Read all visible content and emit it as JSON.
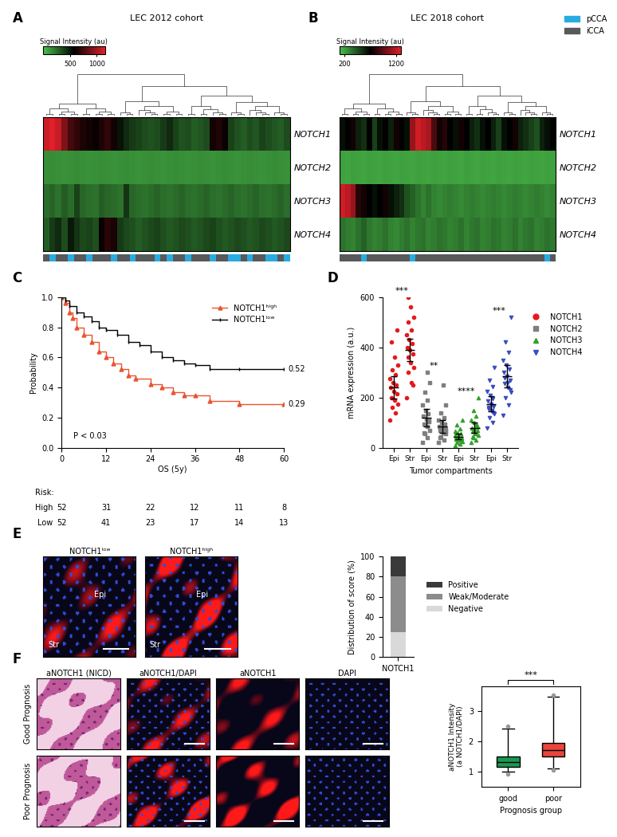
{
  "chart_data": [
    {
      "panel": "A",
      "type": "heatmap",
      "title": "LEC 2012 cohort",
      "rows": [
        "NOTCH1",
        "NOTCH2",
        "NOTCH3",
        "NOTCH4"
      ],
      "cells": [
        [
          1100,
          1150,
          1080,
          900,
          750,
          700,
          650,
          620,
          600,
          650,
          700,
          620,
          520,
          450,
          400,
          380,
          350,
          330,
          350,
          400,
          450,
          380,
          330,
          350,
          300,
          320,
          350,
          620,
          660,
          600,
          380,
          330,
          300,
          350,
          320,
          380,
          350,
          320,
          300,
          350
        ],
        [
          150,
          160,
          150,
          140,
          150,
          160,
          150,
          140,
          150,
          160,
          150,
          140,
          150,
          160,
          150,
          140,
          150,
          160,
          150,
          140,
          150,
          160,
          150,
          140,
          150,
          160,
          150,
          140,
          150,
          160,
          150,
          140,
          150,
          160,
          150,
          140,
          150,
          160,
          150,
          140
        ],
        [
          250,
          280,
          240,
          300,
          260,
          380,
          270,
          250,
          240,
          300,
          270,
          260,
          240,
          420,
          270,
          250,
          240,
          260,
          280,
          250,
          240,
          260,
          280,
          250,
          240,
          260,
          280,
          250,
          240,
          260,
          280,
          250,
          240,
          260,
          280,
          250,
          240,
          260,
          280,
          250
        ],
        [
          300,
          400,
          450,
          350,
          500,
          420,
          360,
          380,
          340,
          600,
          680,
          640,
          400,
          360,
          340,
          300,
          330,
          360,
          380,
          340,
          310,
          330,
          360,
          340,
          310,
          330,
          360,
          380,
          340,
          310,
          330,
          360,
          340,
          310,
          330,
          360,
          340,
          310,
          330,
          360
        ]
      ],
      "colorbar": {
        "label": "Signal Intensity (au)",
        "range": [
          0,
          1150
        ],
        "ticks": [
          500,
          1000
        ]
      },
      "annotation": {
        "series": [
          {
            "name": "pCCA",
            "color": "#29abe2"
          },
          {
            "name": "iCCA",
            "color": "#58595b"
          }
        ],
        "values": [
          "iCCA",
          "pCCA",
          "iCCA",
          "iCCA",
          "pCCA",
          "iCCA",
          "iCCA",
          "pCCA",
          "iCCA",
          "iCCA",
          "iCCA",
          "pCCA",
          "iCCA",
          "iCCA",
          "pCCA",
          "iCCA",
          "iCCA",
          "iCCA",
          "pCCA",
          "iCCA",
          "pCCA",
          "iCCA",
          "iCCA",
          "pCCA",
          "iCCA",
          "iCCA",
          "iCCA",
          "pCCA",
          "iCCA",
          "iCCA",
          "pCCA",
          "pCCA",
          "iCCA",
          "pCCA",
          "iCCA",
          "iCCA",
          "pCCA",
          "pCCA",
          "iCCA",
          "pCCA"
        ]
      },
      "legend": "upper right"
    },
    {
      "panel": "B",
      "type": "heatmap",
      "title": "LEC 2018 cohort",
      "rows": [
        "NOTCH1",
        "NOTCH2",
        "NOTCH3",
        "NOTCH4"
      ],
      "cells": [
        [
          650,
          700,
          750,
          600,
          550,
          700,
          500,
          650,
          700,
          600,
          750,
          700,
          650,
          1100,
          1250,
          1200,
          1150,
          900,
          750,
          800,
          700,
          650,
          750,
          700,
          600,
          550,
          650,
          700,
          600,
          500,
          650,
          700,
          750,
          600,
          550,
          500,
          450,
          600,
          650,
          700
        ],
        [
          200,
          190,
          210,
          200,
          190,
          210,
          200,
          190,
          210,
          200,
          190,
          210,
          200,
          190,
          210,
          200,
          190,
          210,
          200,
          190,
          210,
          200,
          190,
          210,
          200,
          190,
          210,
          200,
          190,
          210,
          200,
          190,
          210,
          200,
          190,
          210,
          200,
          190,
          210,
          200
        ],
        [
          1250,
          1200,
          1100,
          800,
          750,
          700,
          650,
          700,
          750,
          650,
          600,
          550,
          450,
          400,
          350,
          300,
          350,
          300,
          280,
          300,
          320,
          300,
          280,
          300,
          320,
          300,
          280,
          300,
          320,
          300,
          280,
          300,
          320,
          300,
          280,
          300,
          320,
          300,
          280,
          300
        ],
        [
          350,
          320,
          300,
          350,
          400,
          330,
          300,
          320,
          350,
          300,
          280,
          320,
          350,
          300,
          330,
          350,
          300,
          320,
          350,
          330,
          300,
          320,
          350,
          300,
          330,
          350,
          300,
          320,
          350,
          330,
          300,
          320,
          350,
          300,
          330,
          350,
          300,
          320,
          350,
          330
        ]
      ],
      "colorbar": {
        "label": "Signal Intensity (au)",
        "range": [
          100,
          1300
        ],
        "ticks": [
          200,
          1200
        ]
      },
      "annotation": {
        "series": [
          {
            "name": "pCCA",
            "color": "#29abe2"
          },
          {
            "name": "iCCA",
            "color": "#58595b"
          }
        ],
        "values": [
          "iCCA",
          "iCCA",
          "iCCA",
          "iCCA",
          "pCCA",
          "iCCA",
          "iCCA",
          "iCCA",
          "iCCA",
          "iCCA",
          "iCCA",
          "iCCA",
          "iCCA",
          "pCCA",
          "iCCA",
          "iCCA",
          "iCCA",
          "iCCA",
          "iCCA",
          "iCCA",
          "iCCA",
          "iCCA",
          "iCCA",
          "iCCA",
          "iCCA",
          "iCCA",
          "iCCA",
          "iCCA",
          "iCCA",
          "iCCA",
          "iCCA",
          "iCCA",
          "iCCA",
          "iCCA",
          "iCCA",
          "iCCA",
          "iCCA",
          "iCCA",
          "pCCA",
          "iCCA"
        ]
      }
    },
    {
      "panel": "C",
      "type": "step",
      "x_label": "OS (5y)",
      "y_label": "Probability",
      "xlim": [
        0,
        60
      ],
      "xticks": [
        0,
        12,
        24,
        36,
        48,
        60
      ],
      "ylim": [
        0.0,
        1.0
      ],
      "yticks": [
        0.0,
        0.2,
        0.4,
        0.6,
        0.8,
        1.0
      ],
      "series": [
        {
          "name": "NOTCH1ʰⁱᵍʰ",
          "color": "#e8542f",
          "marker": "^",
          "x": [
            0,
            1,
            2,
            3,
            4,
            6,
            8,
            10,
            12,
            14,
            16,
            18,
            20,
            24,
            27,
            30,
            33,
            36,
            40,
            48,
            60
          ],
          "values": [
            1.0,
            0.96,
            0.9,
            0.86,
            0.8,
            0.75,
            0.7,
            0.64,
            0.6,
            0.56,
            0.52,
            0.48,
            0.46,
            0.42,
            0.4,
            0.37,
            0.35,
            0.35,
            0.31,
            0.29,
            0.29
          ]
        },
        {
          "name": "NOTCH1ˡᵒʷ",
          "color": "#000000",
          "marker": "|",
          "x": [
            0,
            1,
            2,
            4,
            6,
            8,
            10,
            12,
            15,
            18,
            21,
            24,
            27,
            30,
            33,
            36,
            40,
            48,
            60
          ],
          "values": [
            1.0,
            0.98,
            0.94,
            0.9,
            0.87,
            0.84,
            0.8,
            0.78,
            0.75,
            0.7,
            0.68,
            0.64,
            0.6,
            0.58,
            0.56,
            0.55,
            0.52,
            0.52,
            0.52
          ]
        }
      ],
      "annotations": [
        {
          "text": "0.52",
          "x": 60,
          "y": 0.52
        },
        {
          "text": "0.29",
          "x": 60,
          "y": 0.29
        },
        {
          "text": "P < 0.03",
          "x": 2,
          "y": 0.08
        }
      ],
      "risk_table": {
        "title": "Risk:",
        "rows": [
          {
            "name": "High",
            "values": [
              52,
              31,
              22,
              12,
              11,
              8
            ]
          },
          {
            "name": "Low",
            "values": [
              52,
              41,
              23,
              17,
              14,
              13
            ]
          }
        ]
      },
      "legend": "upper right"
    },
    {
      "panel": "D",
      "type": "scatter",
      "x_label": "Tumor compartments",
      "y_label": "mRNA expression (a.u.)",
      "categories": [
        "Epi",
        "Str",
        "Epi",
        "Str",
        "Epi",
        "Str",
        "Epi",
        "Str"
      ],
      "ylim": [
        0,
        600
      ],
      "yticks": [
        0,
        200,
        400,
        600
      ],
      "series": [
        {
          "name": "NOTCH1",
          "color": "#e41a1c",
          "marker": "o",
          "values": [
            [
              110,
              140,
              160,
              175,
              190,
              200,
              215,
              225,
              240,
              250,
              260,
              275,
              290,
              310,
              330,
              360,
              420,
              470
            ],
            [
              200,
              260,
              300,
              320,
              340,
              360,
              375,
              390,
              400,
              415,
              430,
              450,
              470,
              500,
              520,
              560,
              600,
              250
            ]
          ],
          "means": [
            240,
            390
          ],
          "errors": [
            45,
            45
          ]
        },
        {
          "name": "NOTCH2",
          "color": "#7f7f7f",
          "marker": "s",
          "values": [
            [
              20,
              40,
              55,
              70,
              85,
              95,
              105,
              115,
              125,
              135,
              150,
              170,
              190,
              220,
              260,
              300,
              60,
              110
            ],
            [
              20,
              30,
              45,
              55,
              60,
              70,
              75,
              80,
              85,
              95,
              100,
              110,
              120,
              140,
              170,
              250,
              40,
              65
            ]
          ],
          "means": [
            120,
            85
          ],
          "errors": [
            35,
            25
          ]
        },
        {
          "name": "NOTCH3",
          "color": "#33a02c",
          "marker": "^",
          "values": [
            [
              10,
              15,
              20,
              25,
              30,
              35,
              40,
              45,
              50,
              55,
              60,
              65,
              75,
              90,
              110,
              30,
              40,
              35
            ],
            [
              20,
              30,
              40,
              50,
              55,
              65,
              70,
              75,
              80,
              90,
              100,
              110,
              125,
              150,
              200,
              60,
              45,
              85
            ]
          ],
          "means": [
            45,
            80
          ],
          "errors": [
            12,
            20
          ]
        },
        {
          "name": "NOTCH4",
          "color": "#3b4cc0",
          "marker": "v",
          "values": [
            [
              80,
              100,
              120,
              135,
              145,
              155,
              165,
              175,
              185,
              195,
              210,
              225,
              245,
              270,
              320,
              150,
              160,
              140
            ],
            [
              130,
              170,
              200,
              220,
              240,
              255,
              270,
              285,
              300,
              315,
              330,
              350,
              380,
              420,
              520,
              260,
              280,
              230
            ]
          ],
          "means": [
            175,
            285
          ],
          "errors": [
            30,
            45
          ]
        }
      ],
      "significance": [
        "***",
        "**",
        "****",
        "***"
      ],
      "legend": "right"
    },
    {
      "panel": "E",
      "type": "bar",
      "stacked": true,
      "y_label": "Distribution of score (%)",
      "categories": [
        "NOTCH1"
      ],
      "ylim": [
        0,
        100
      ],
      "yticks": [
        0,
        20,
        40,
        60,
        80,
        100
      ],
      "series": [
        {
          "name": "Negative",
          "color": "#d9d9d9",
          "values": [
            25
          ]
        },
        {
          "name": "Weak/Moderate",
          "color": "#8c8c8c",
          "values": [
            55
          ]
        },
        {
          "name": "Positive",
          "color": "#3a3a3a",
          "values": [
            20
          ]
        }
      ],
      "legend": "right"
    },
    {
      "panel": "F",
      "type": "box",
      "x_label": "Prognosis group",
      "y_label": "aNOTCH1 Intensity\n(a NOTCH1/DAPI)",
      "categories": [
        "good",
        "poor"
      ],
      "colors": [
        "#1a9850",
        "#e8453c"
      ],
      "ylim": [
        0.5,
        3.8
      ],
      "yticks": [
        1,
        2,
        3
      ],
      "boxes": [
        {
          "whislo": 1.0,
          "q1": 1.15,
          "med": 1.3,
          "q3": 1.5,
          "whishi": 2.4,
          "fliers": [
            0.92,
            2.5
          ]
        },
        {
          "whislo": 1.1,
          "q1": 1.5,
          "med": 1.7,
          "q3": 1.95,
          "whishi": 3.45,
          "fliers": [
            1.05,
            3.5
          ]
        }
      ],
      "significance": "***"
    }
  ],
  "images": [
    {
      "panel": "E",
      "images": [
        {
          "title": "NOTCH1ˡᵒʷ",
          "labels": [
            "Epi",
            "Str"
          ]
        },
        {
          "title": "NOTCH1ʰⁱᵍʰ",
          "labels": [
            "Epi",
            "Str"
          ]
        }
      ]
    },
    {
      "panel": "F",
      "columns": [
        "aNOTCH1 (NICD)",
        "aNOTCH1/DAPI",
        "aNOTCH1",
        "DAPI"
      ],
      "rows": [
        "Good Prognosis",
        "Poor Prognosis"
      ]
    }
  ]
}
